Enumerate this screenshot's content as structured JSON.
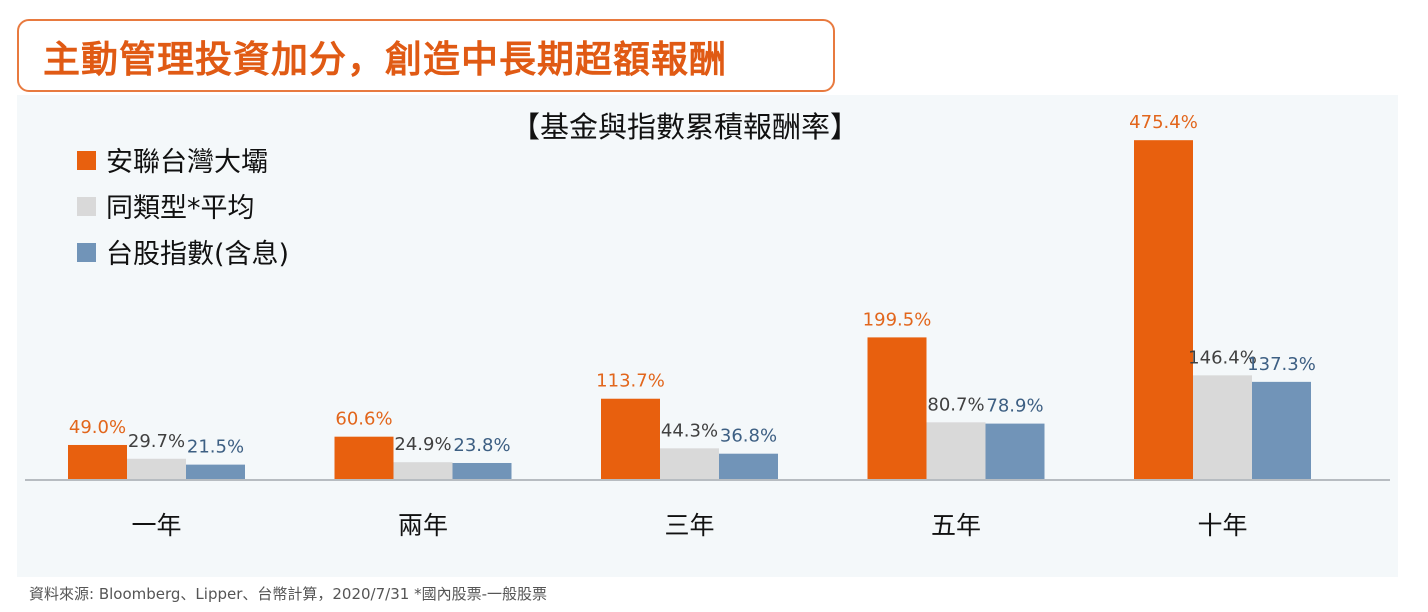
{
  "headline": "主動管理投資加分，創造中長期超額報酬",
  "source_note": "資料來源: Bloomberg、Lipper、台幣計算，2020/7/31 *國內股票-一般股票",
  "colors": {
    "accent": "#e05a14",
    "headline_border": "#e87a3f",
    "panel_bg": "#f4f8fa"
  },
  "chart_data": {
    "type": "bar",
    "title": "【基金與指數累積報酬率】",
    "categories": [
      "一年",
      "兩年",
      "三年",
      "五年",
      "十年"
    ],
    "unit": "%",
    "ylim": [
      0,
      480
    ],
    "grid": false,
    "legend_position": "top-left",
    "series": [
      {
        "name": "安聯台灣大壩",
        "color": "#e8600e",
        "label_color": "#e2661c",
        "values": [
          49.0,
          60.6,
          113.7,
          199.5,
          475.4
        ],
        "labels": [
          "49.0%",
          "60.6%",
          "113.7%",
          "199.5%",
          "475.4%"
        ]
      },
      {
        "name": "同類型*平均",
        "color": "#d9d9d9",
        "label_color": "#404040",
        "values": [
          29.7,
          24.9,
          44.3,
          80.7,
          146.4
        ],
        "labels": [
          "29.7%",
          "24.9%",
          "44.3%",
          "80.7%",
          "146.4%"
        ]
      },
      {
        "name": "台股指數(含息)",
        "color": "#7194b8",
        "label_color": "#3d5f83",
        "values": [
          21.5,
          23.8,
          36.8,
          78.9,
          137.3
        ],
        "labels": [
          "21.5%",
          "23.8%",
          "36.8%",
          "78.9%",
          "137.3%"
        ]
      }
    ]
  }
}
